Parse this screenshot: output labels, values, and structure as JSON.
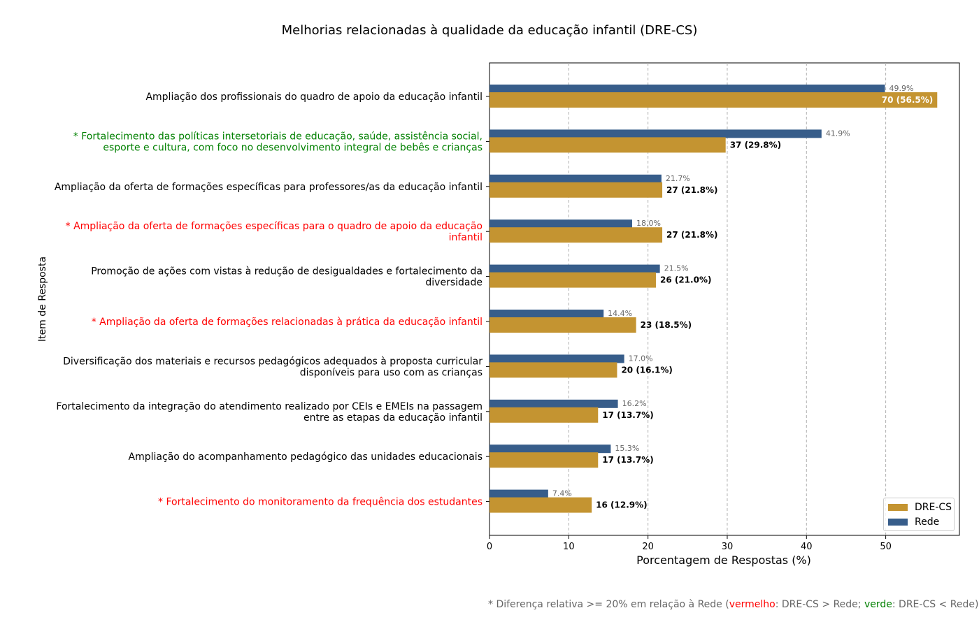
{
  "chart_data": {
    "type": "bar",
    "orientation": "horizontal",
    "title": "Melhorias relacionadas à qualidade da educação infantil (DRE-CS)",
    "xlabel": "Porcentagem de Respostas (%)",
    "ylabel": "Item de Resposta",
    "xlim": [
      0,
      59.3
    ],
    "xticks": [
      "0",
      "10",
      "20",
      "30",
      "40",
      "50"
    ],
    "grid": "x-dashed",
    "legend_position": "bottom-right",
    "colors": {
      "drecs": "#c49431",
      "rede": "#375d8a",
      "red": "#ff0000",
      "green": "#008000",
      "default": "#000000"
    },
    "categories": [
      {
        "lines": [
          "Ampliação dos profissionais do quadro de apoio da educação infantil"
        ],
        "highlight": "none"
      },
      {
        "lines": [
          "* Fortalecimento das políticas intersetoriais de educação, saúde, assistência social,",
          "esporte e cultura, com foco no desenvolvimento integral de bebês e crianças"
        ],
        "highlight": "green"
      },
      {
        "lines": [
          "Ampliação da oferta de formações específicas para professores/as da educação infantil"
        ],
        "highlight": "none"
      },
      {
        "lines": [
          "* Ampliação da oferta de formações específicas para o quadro de apoio da educação",
          "infantil"
        ],
        "highlight": "red"
      },
      {
        "lines": [
          "Promoção de ações com vistas à redução de desigualdades e fortalecimento da",
          "diversidade"
        ],
        "highlight": "none"
      },
      {
        "lines": [
          "* Ampliação da oferta de formações relacionadas à prática da educação infantil"
        ],
        "highlight": "red"
      },
      {
        "lines": [
          "Diversificação dos materiais e recursos pedagógicos adequados à proposta curricular",
          "disponíveis para uso com as crianças"
        ],
        "highlight": "none"
      },
      {
        "lines": [
          "Fortalecimento da integração do atendimento realizado por CEIs e EMEIs na passagem",
          "entre as etapas da educação infantil"
        ],
        "highlight": "none"
      },
      {
        "lines": [
          "Ampliação do acompanhamento pedagógico das unidades educacionais"
        ],
        "highlight": "none"
      },
      {
        "lines": [
          "* Fortalecimento do monitoramento da frequência dos estudantes"
        ],
        "highlight": "red"
      }
    ],
    "series": [
      {
        "name": "DRE-CS",
        "values": [
          56.5,
          29.8,
          21.8,
          21.8,
          21.0,
          18.5,
          16.1,
          13.7,
          13.7,
          12.9
        ],
        "labels": [
          "70 (56.5%)",
          "37 (29.8%)",
          "27 (21.8%)",
          "27 (21.8%)",
          "26 (21.0%)",
          "23 (18.5%)",
          "20 (16.1%)",
          "17 (13.7%)",
          "17 (13.7%)",
          "16 (12.9%)"
        ]
      },
      {
        "name": "Rede",
        "values": [
          49.9,
          41.9,
          21.7,
          18.0,
          21.5,
          14.4,
          17.0,
          16.2,
          15.3,
          7.4
        ],
        "labels": [
          "49.9%",
          "41.9%",
          "21.7%",
          "18.0%",
          "21.5%",
          "14.4%",
          "17.0%",
          "16.2%",
          "15.3%",
          "7.4%"
        ]
      }
    ],
    "footnote": {
      "prefix": "* Diferença relativa >= 20% em relação à Rede (",
      "red_word": "vermelho",
      "middle": ": DRE-CS > Rede; ",
      "green_word": "verde",
      "suffix": ": DRE-CS < Rede)"
    }
  }
}
